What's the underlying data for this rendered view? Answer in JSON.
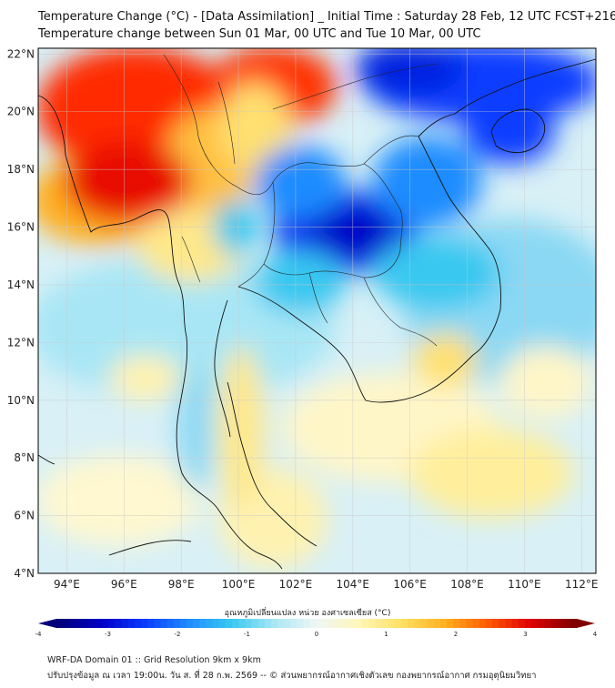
{
  "title": {
    "line1": "Temperature Change (°C) - [Data Assimilation] _ Initial Time : Saturday 28 Feb, 12 UTC FCST+216",
    "line2": "Temperature change between Sun 01 Mar, 00 UTC and Tue 10 Mar, 00 UTC"
  },
  "map": {
    "lat_labels": [
      "22°N",
      "20°N",
      "18°N",
      "16°N",
      "14°N",
      "12°N",
      "10°N",
      "8°N",
      "6°N",
      "4°N"
    ],
    "lon_labels": [
      "94°E",
      "96°E",
      "98°E",
      "100°E",
      "102°E",
      "104°E",
      "106°E",
      "108°E",
      "110°E",
      "112°E"
    ],
    "lat_range": [
      4,
      22.2
    ],
    "lon_range": [
      93,
      112.5
    ]
  },
  "colorbar": {
    "label": "อุณหภูมิเปลี่ยนแปลง หน่วย องศาเซลเซียส (°C)",
    "ticks": [
      "-4",
      "-3",
      "-2",
      "-1",
      "0",
      "1",
      "2",
      "3",
      "4"
    ],
    "range": [
      -4,
      4
    ],
    "colors": [
      "#00007a",
      "#0000c8",
      "#0a3cff",
      "#1e8cff",
      "#38c8f0",
      "#a8e6f5",
      "#eef7f5",
      "#fff6b8",
      "#ffe060",
      "#ffb020",
      "#ff5a00",
      "#e00000",
      "#800000"
    ]
  },
  "footer": {
    "line1": "WRF-DA Domain 01 :: Grid Resolution 9km x 9km",
    "line2": "ปรับปรุงข้อมูล ณ เวลา 19:00น. วัน ส. ที่ 28 ก.พ. 2569 -- © ส่วนพยากรณ์อากาศเชิงตัวเลข กองพยากรณ์อากาศ กรมอุตุนิยมวิทยา"
  }
}
